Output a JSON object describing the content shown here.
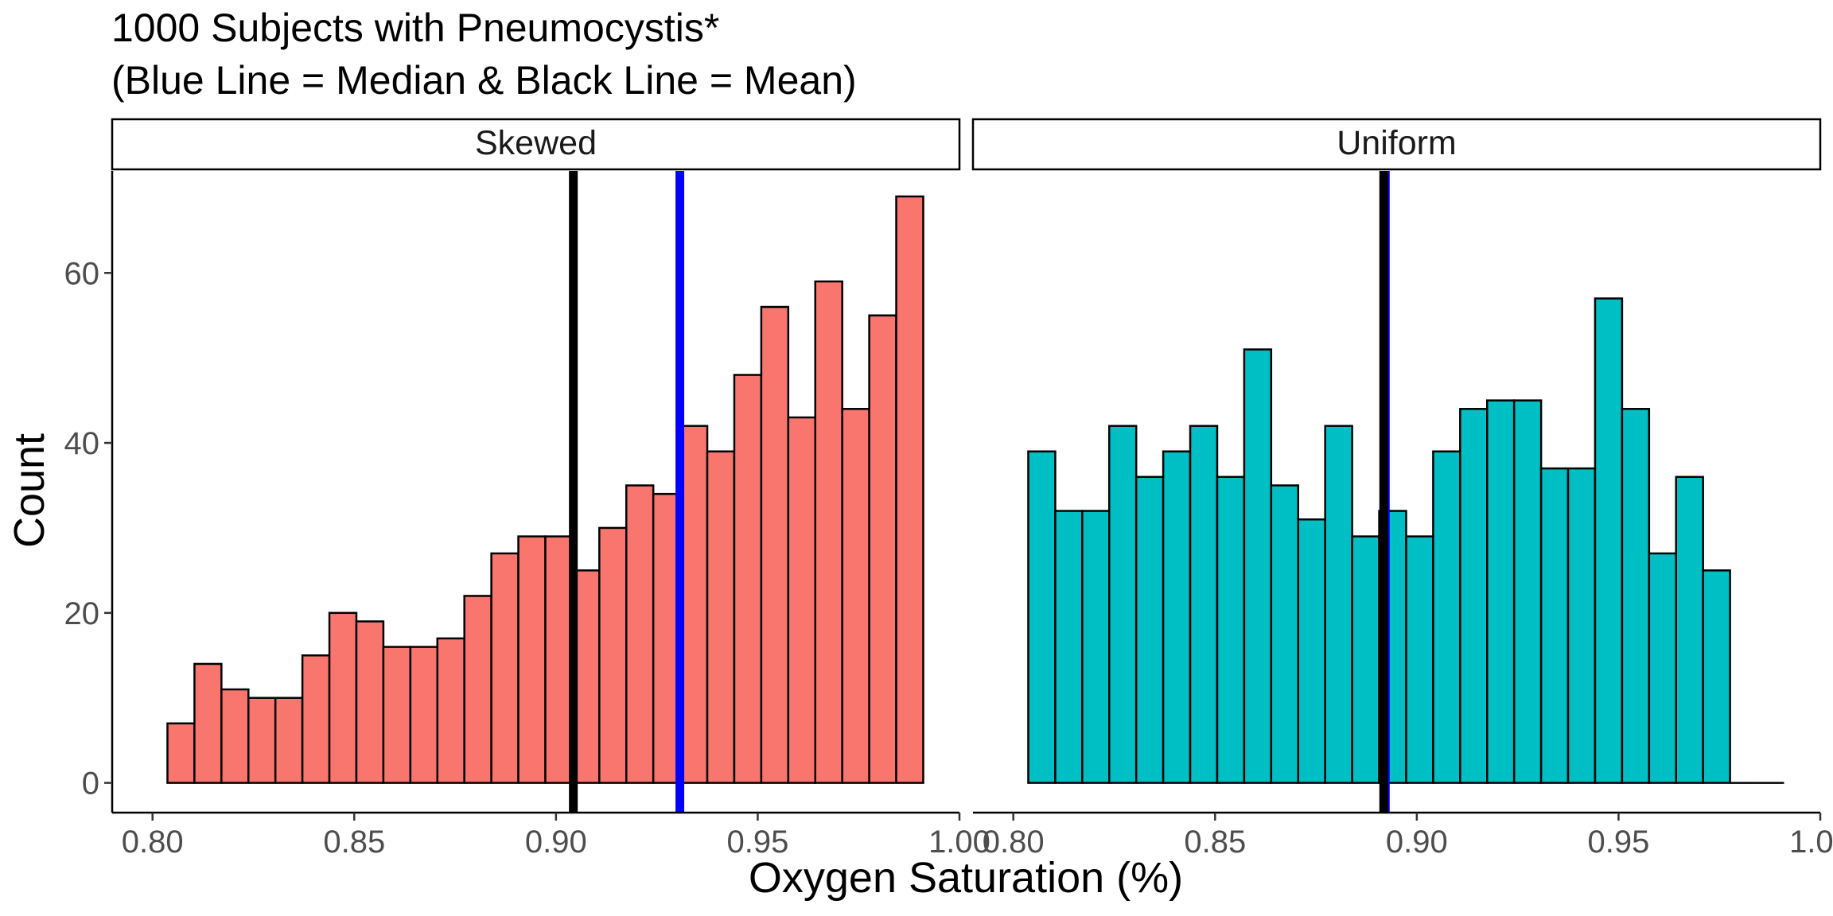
{
  "chart_data": {
    "type": "bar",
    "title": "1000 Subjects with Pneumocystis*",
    "subtitle": "(Blue Line = Median & Black Line = Mean)",
    "xlabel": "Oxygen Saturation (%)",
    "ylabel": "Count",
    "xlim": [
      0.79,
      1.0
    ],
    "ylim": [
      -3.5,
      72
    ],
    "x_ticks": [
      "0.80",
      "0.85",
      "0.90",
      "0.95",
      "1.00"
    ],
    "y_ticks": [
      "0",
      "20",
      "40",
      "60"
    ],
    "grid": false,
    "legend": "none",
    "bin_start": 0.8037,
    "bin_width": 0.00669,
    "colors": {
      "skewed_fill": "#F8766D",
      "uniform_fill": "#00BFC4",
      "bar_stroke": "#000000",
      "median_line": "#0000FF",
      "mean_line": "#000000"
    },
    "panels": [
      {
        "name": "Skewed",
        "fill_key": "skewed_fill",
        "values": [
          7,
          14,
          11,
          10,
          10,
          15,
          20,
          19,
          16,
          16,
          17,
          22,
          27,
          29,
          29,
          25,
          30,
          35,
          34,
          42,
          39,
          48,
          56,
          43,
          59,
          44,
          55,
          69
        ],
        "median": 0.9307,
        "mean": 0.9043
      },
      {
        "name": "Uniform",
        "fill_key": "uniform_fill",
        "values": [
          39,
          32,
          32,
          42,
          36,
          39,
          42,
          36,
          51,
          35,
          31,
          42,
          29,
          32,
          29,
          39,
          44,
          45,
          45,
          37,
          37,
          57,
          44,
          27,
          36,
          25,
          0,
          0
        ],
        "median": 0.8922,
        "mean": 0.8918
      }
    ]
  }
}
